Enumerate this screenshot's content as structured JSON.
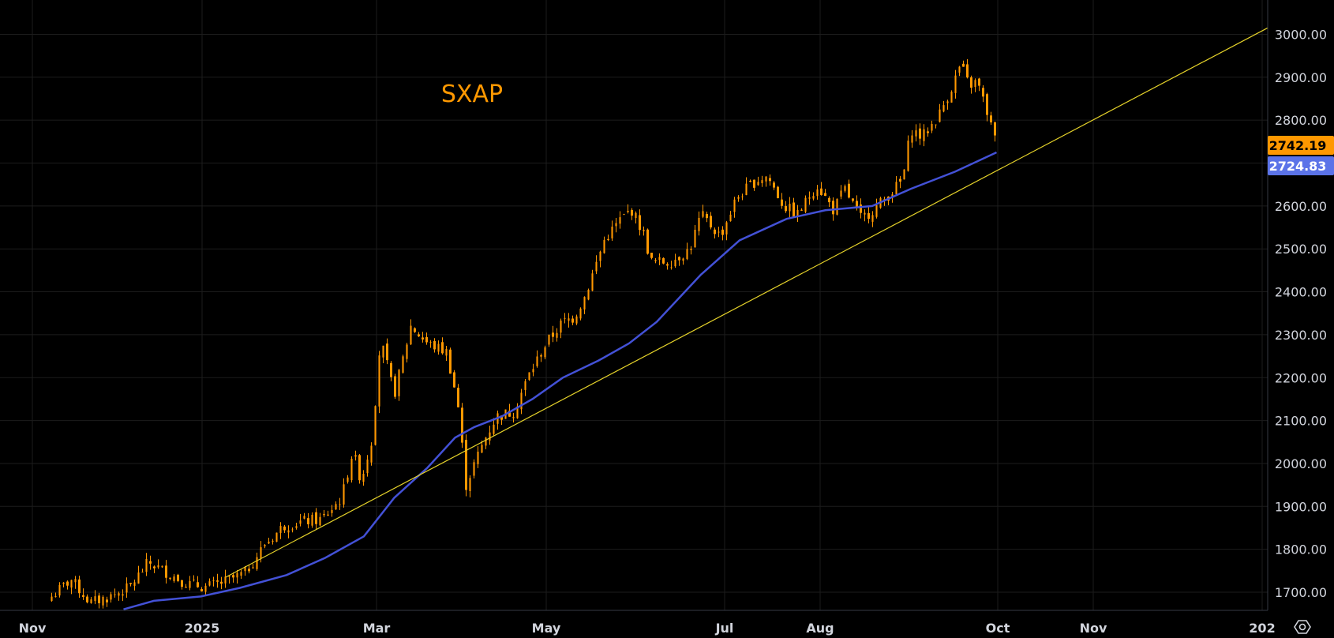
{
  "chart_data": {
    "type": "candlestick",
    "symbol": "SXAP",
    "y_ticks": [
      "3000.00",
      "2900.00",
      "2800.00",
      "2700.00",
      "2600.00",
      "2500.00",
      "2400.00",
      "2300.00",
      "2200.00",
      "2100.00",
      "2000.00",
      "1900.00",
      "1800.00",
      "1700.00"
    ],
    "x_ticks": [
      "Nov",
      "2025",
      "Mar",
      "May",
      "Jul",
      "Aug",
      "Oct",
      "Nov",
      "202"
    ],
    "ylim": [
      1660,
      3020
    ],
    "last_price": "2742.19",
    "ma_value": "2724.83",
    "colors": {
      "candle": "#ff9800",
      "moving_average": "#4351d6",
      "trendline": "#e5d22a",
      "background": "#000000",
      "grid": "#1c1c1c",
      "axis_text": "#d1d4dc",
      "last_price_badge": "#ff9800",
      "ma_badge": "#5b73e8"
    },
    "trendline": {
      "start": [
        "2025-01-10",
        1735
      ],
      "end": [
        "2025-12-31",
        3015
      ]
    },
    "price_path": [
      [
        "2024-11-08",
        1690
      ],
      [
        "2024-11-15",
        1730
      ],
      [
        "2024-11-22",
        1675
      ],
      [
        "2024-11-29",
        1690
      ],
      [
        "2024-12-06",
        1710
      ],
      [
        "2024-12-13",
        1770
      ],
      [
        "2024-12-20",
        1745
      ],
      [
        "2024-12-27",
        1720
      ],
      [
        "2025-01-03",
        1712
      ],
      [
        "2025-01-10",
        1725
      ],
      [
        "2025-01-17",
        1745
      ],
      [
        "2025-01-24",
        1810
      ],
      [
        "2025-01-31",
        1855
      ],
      [
        "2025-02-07",
        1865
      ],
      [
        "2025-02-14",
        1870
      ],
      [
        "2025-02-21",
        1920
      ],
      [
        "2025-02-25",
        2030
      ],
      [
        "2025-02-28",
        1960
      ],
      [
        "2025-03-04",
        2060
      ],
      [
        "2025-03-07",
        2290
      ],
      [
        "2025-03-12",
        2160
      ],
      [
        "2025-03-18",
        2320
      ],
      [
        "2025-03-24",
        2280
      ],
      [
        "2025-03-31",
        2260
      ],
      [
        "2025-04-04",
        2140
      ],
      [
        "2025-04-07",
        1950
      ],
      [
        "2025-04-10",
        2000
      ],
      [
        "2025-04-14",
        2060
      ],
      [
        "2025-04-18",
        2110
      ],
      [
        "2025-04-24",
        2120
      ],
      [
        "2025-04-30",
        2210
      ],
      [
        "2025-05-06",
        2280
      ],
      [
        "2025-05-12",
        2330
      ],
      [
        "2025-05-16",
        2340
      ],
      [
        "2025-05-20",
        2390
      ],
      [
        "2025-05-27",
        2520
      ],
      [
        "2025-06-02",
        2570
      ],
      [
        "2025-06-06",
        2590
      ],
      [
        "2025-06-10",
        2540
      ],
      [
        "2025-06-13",
        2470
      ],
      [
        "2025-06-20",
        2470
      ],
      [
        "2025-06-27",
        2500
      ],
      [
        "2025-07-01",
        2580
      ],
      [
        "2025-07-08",
        2530
      ],
      [
        "2025-07-14",
        2620
      ],
      [
        "2025-07-21",
        2660
      ],
      [
        "2025-07-25",
        2670
      ],
      [
        "2025-07-31",
        2600
      ],
      [
        "2025-08-05",
        2580
      ],
      [
        "2025-08-12",
        2650
      ],
      [
        "2025-08-18",
        2590
      ],
      [
        "2025-08-22",
        2640
      ],
      [
        "2025-08-28",
        2570
      ],
      [
        "2025-09-03",
        2600
      ],
      [
        "2025-09-09",
        2640
      ],
      [
        "2025-09-12",
        2660
      ],
      [
        "2025-09-15",
        2780
      ],
      [
        "2025-09-19",
        2760
      ],
      [
        "2025-09-25",
        2810
      ],
      [
        "2025-09-30",
        2880
      ],
      [
        "2025-10-03",
        2930
      ],
      [
        "2025-10-06",
        2880
      ],
      [
        "2025-10-09",
        2890
      ],
      [
        "2025-10-13",
        2810
      ],
      [
        "2025-10-16",
        2742.19
      ]
    ],
    "ma_path": [
      [
        "2024-12-04",
        1660
      ],
      [
        "2024-12-15",
        1680
      ],
      [
        "2025-01-01",
        1690
      ],
      [
        "2025-01-15",
        1710
      ],
      [
        "2025-02-01",
        1740
      ],
      [
        "2025-02-15",
        1780
      ],
      [
        "2025-03-01",
        1830
      ],
      [
        "2025-03-12",
        1920
      ],
      [
        "2025-03-24",
        1990
      ],
      [
        "2025-04-03",
        2060
      ],
      [
        "2025-04-10",
        2085
      ],
      [
        "2025-04-20",
        2110
      ],
      [
        "2025-05-01",
        2150
      ],
      [
        "2025-05-12",
        2200
      ],
      [
        "2025-05-25",
        2240
      ],
      [
        "2025-06-05",
        2280
      ],
      [
        "2025-06-15",
        2330
      ],
      [
        "2025-07-01",
        2440
      ],
      [
        "2025-07-15",
        2520
      ],
      [
        "2025-08-01",
        2570
      ],
      [
        "2025-08-15",
        2590
      ],
      [
        "2025-09-01",
        2600
      ],
      [
        "2025-09-15",
        2640
      ],
      [
        "2025-10-01",
        2680
      ],
      [
        "2025-10-16",
        2724.83
      ]
    ]
  }
}
